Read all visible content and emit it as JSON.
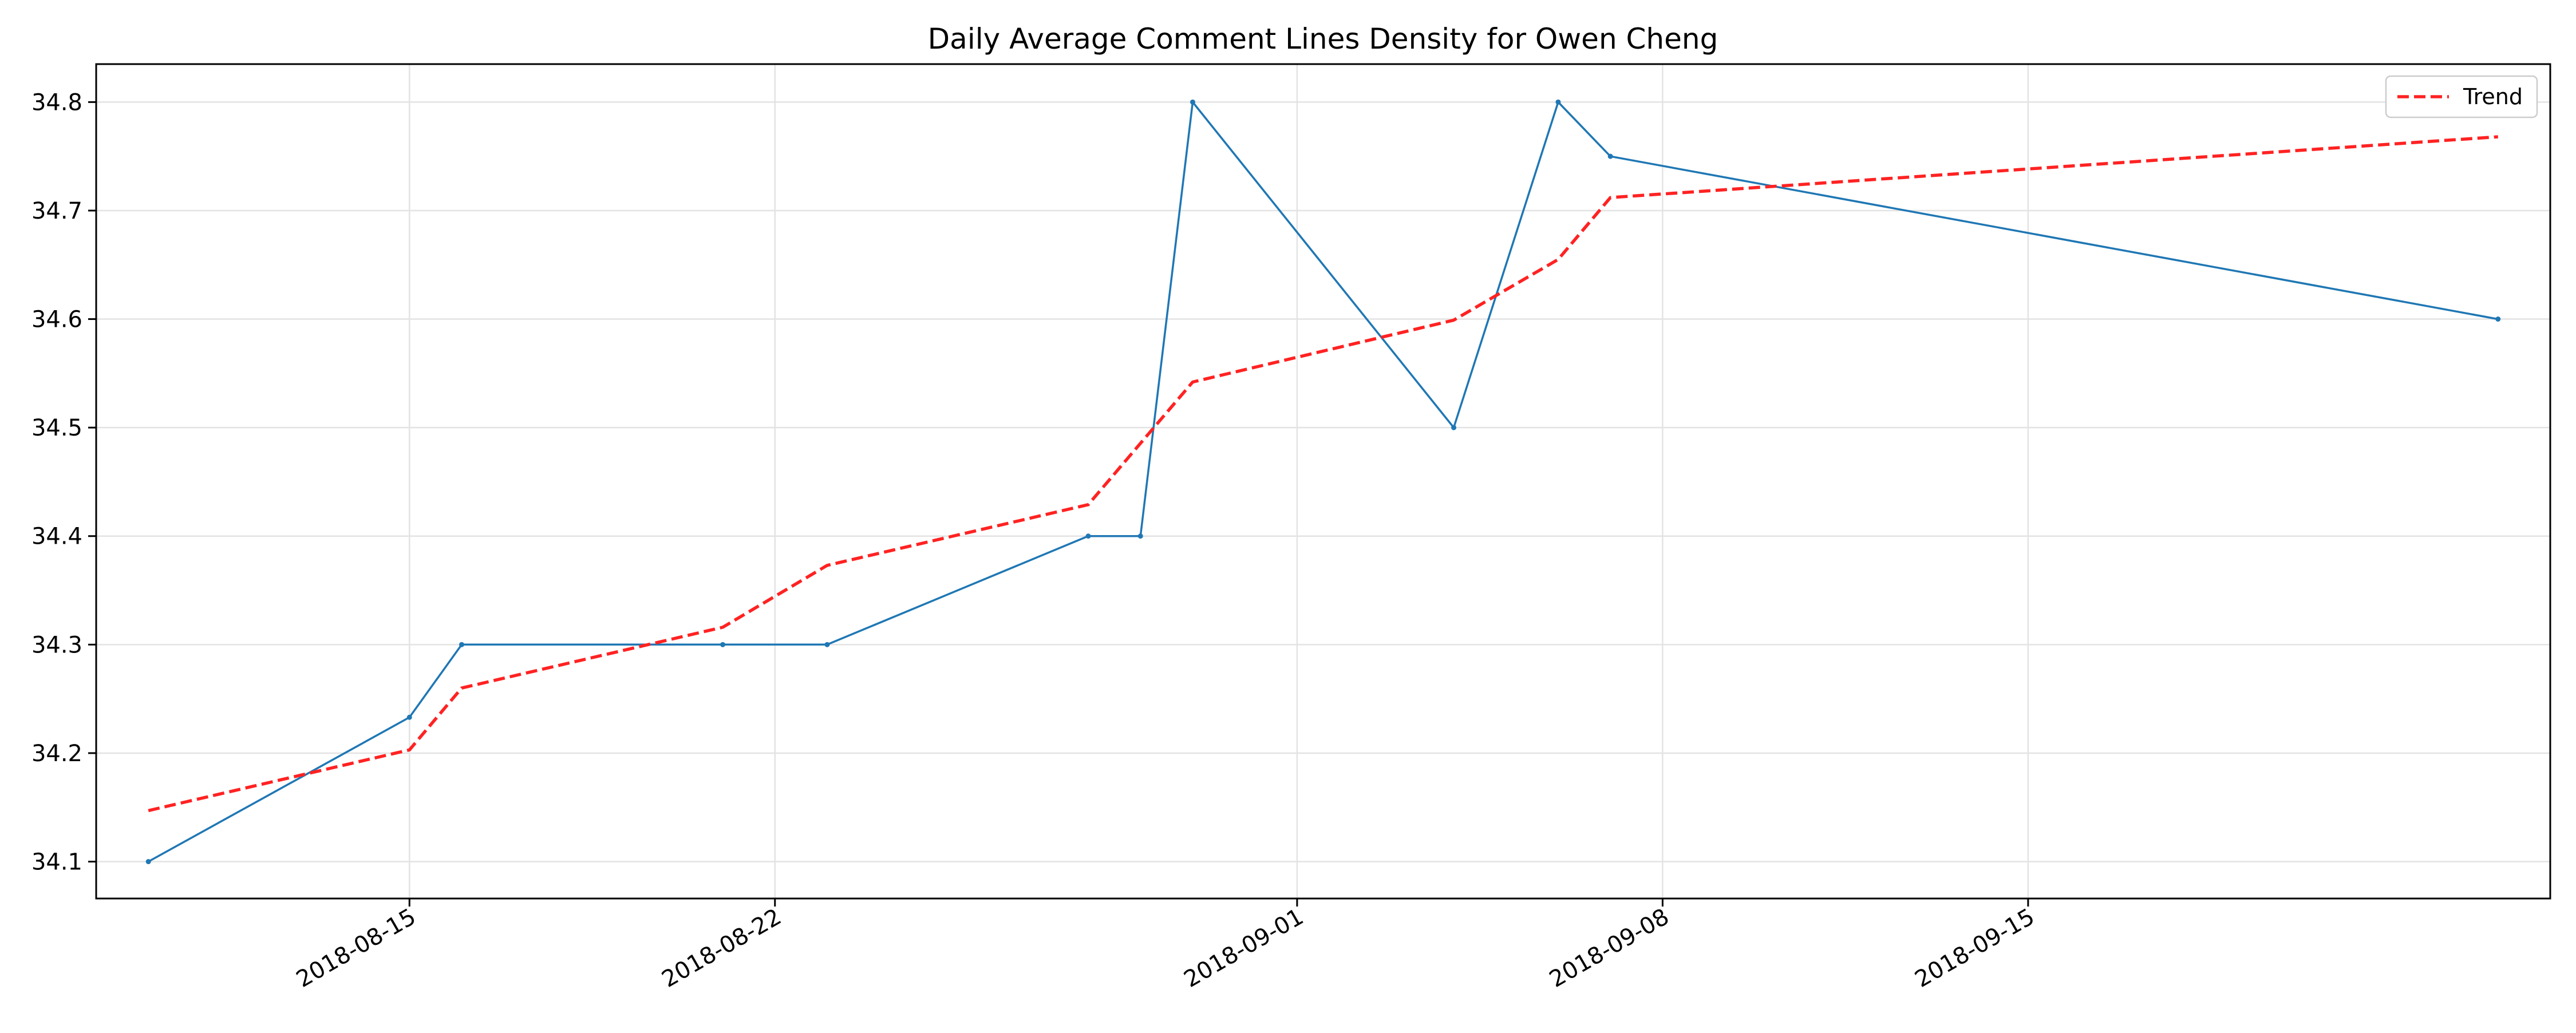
{
  "chart_data": {
    "type": "line",
    "title": "Daily Average Comment Lines Density for Owen Cheng",
    "xlabel": "",
    "ylabel": "",
    "x_type": "date",
    "xlim": [
      "2018-08-09",
      "2018-09-25"
    ],
    "ylim": [
      34.066,
      34.835
    ],
    "x_ticks": [
      "2018-08-15",
      "2018-08-22",
      "2018-09-01",
      "2018-09-08",
      "2018-09-15"
    ],
    "y_ticks": [
      34.1,
      34.2,
      34.3,
      34.4,
      34.5,
      34.6,
      34.7,
      34.8
    ],
    "y_tick_labels": [
      "34.1",
      "34.2",
      "34.3",
      "34.4",
      "34.5",
      "34.6",
      "34.7",
      "34.8"
    ],
    "grid": true,
    "legend_position": "top-right",
    "series": [
      {
        "color": "#1f77b4",
        "style": "solid",
        "marker": "dot",
        "points": [
          {
            "x": "2018-08-10",
            "y": 34.1
          },
          {
            "x": "2018-08-15",
            "y": 34.233
          },
          {
            "x": "2018-08-16",
            "y": 34.3
          },
          {
            "x": "2018-08-21",
            "y": 34.3
          },
          {
            "x": "2018-08-23",
            "y": 34.3
          },
          {
            "x": "2018-08-28",
            "y": 34.4
          },
          {
            "x": "2018-08-29",
            "y": 34.4
          },
          {
            "x": "2018-08-30",
            "y": 34.8
          },
          {
            "x": "2018-09-04",
            "y": 34.5
          },
          {
            "x": "2018-09-06",
            "y": 34.8
          },
          {
            "x": "2018-09-07",
            "y": 34.75
          },
          {
            "x": "2018-09-24",
            "y": 34.6
          }
        ]
      },
      {
        "name": "Trend",
        "color": "#ff2222",
        "style": "dashed",
        "points": [
          {
            "x": "2018-08-10",
            "y": 34.147
          },
          {
            "x": "2018-08-15",
            "y": 34.203
          },
          {
            "x": "2018-08-16",
            "y": 34.26
          },
          {
            "x": "2018-08-21",
            "y": 34.316
          },
          {
            "x": "2018-08-23",
            "y": 34.373
          },
          {
            "x": "2018-08-28",
            "y": 34.429
          },
          {
            "x": "2018-08-30",
            "y": 34.542
          },
          {
            "x": "2018-09-04",
            "y": 34.599
          },
          {
            "x": "2018-09-06",
            "y": 34.655
          },
          {
            "x": "2018-09-07",
            "y": 34.712
          },
          {
            "x": "2018-09-24",
            "y": 34.768
          }
        ]
      }
    ]
  }
}
